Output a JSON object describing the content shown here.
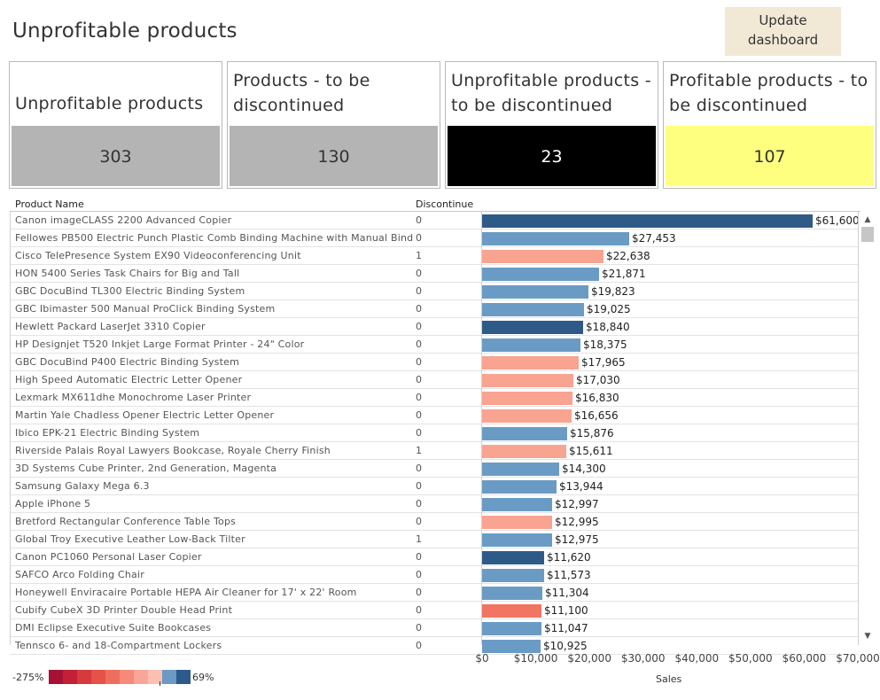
{
  "title": "Unprofitable products",
  "update_button": {
    "line1": "Update",
    "line2": "dashboard"
  },
  "kpis": [
    {
      "line1": "Unprofitable products",
      "line2": "",
      "value": "303",
      "bg": "#b4b4b4",
      "fg": "#333333"
    },
    {
      "line1": "Products - to be",
      "line2": "discontinued",
      "value": "130",
      "bg": "#b4b4b4",
      "fg": "#333333"
    },
    {
      "line1": "Unprofitable products -",
      "line2": "to be discontinued",
      "value": "23",
      "bg": "#000000",
      "fg": "#ffffff"
    },
    {
      "line1": "Profitable products - to",
      "line2": "be discontinued",
      "value": "107",
      "bg": "#ffff7f",
      "fg": "#333333"
    }
  ],
  "table": {
    "col_product": "Product Name",
    "col_discontinue": "Discontinue"
  },
  "legend": {
    "low": "-275%",
    "high": "69%",
    "colors": [
      "#a51234",
      "#c41f37",
      "#d73a3d",
      "#e55248",
      "#ee6e5e",
      "#f5897a",
      "#f9a698",
      "#fbc0b2",
      "#6b9ac4",
      "#2b5a8b"
    ]
  },
  "chart_data": {
    "type": "bar",
    "orientation": "horizontal",
    "xlabel": "Sales",
    "xlim": [
      0,
      70000
    ],
    "x_ticks": [
      "$0",
      "$10,000",
      "$20,000",
      "$30,000",
      "$40,000",
      "$50,000",
      "$60,000",
      "$70,000"
    ],
    "x_tick_values": [
      0,
      10000,
      20000,
      30000,
      40000,
      50000,
      60000,
      70000
    ],
    "rows": [
      {
        "name": "Canon imageCLASS 2200 Advanced Copier",
        "discontinue": "0",
        "value": 61600,
        "label": "$61,600",
        "color": "#2e5a88"
      },
      {
        "name": "Fellowes PB500 Electric Punch Plastic Comb Binding Machine with Manual Bind",
        "discontinue": "0",
        "value": 27453,
        "label": "$27,453",
        "color": "#6a9bc5"
      },
      {
        "name": "Cisco TelePresence System EX90 Videoconferencing Unit",
        "discontinue": "1",
        "value": 22638,
        "label": "$22,638",
        "color": "#f9a391"
      },
      {
        "name": "HON 5400 Series Task Chairs for Big and Tall",
        "discontinue": "0",
        "value": 21871,
        "label": "$21,871",
        "color": "#6a9bc5"
      },
      {
        "name": "GBC DocuBind TL300 Electric Binding System",
        "discontinue": "0",
        "value": 19823,
        "label": "$19,823",
        "color": "#6a9bc5"
      },
      {
        "name": "GBC Ibimaster 500 Manual ProClick Binding System",
        "discontinue": "0",
        "value": 19025,
        "label": "$19,025",
        "color": "#6a9bc5"
      },
      {
        "name": "Hewlett Packard LaserJet 3310 Copier",
        "discontinue": "0",
        "value": 18840,
        "label": "$18,840",
        "color": "#2e5a88"
      },
      {
        "name": "HP Designjet T520 Inkjet Large Format Printer - 24\" Color",
        "discontinue": "0",
        "value": 18375,
        "label": "$18,375",
        "color": "#6a9bc5"
      },
      {
        "name": "GBC DocuBind P400 Electric Binding System",
        "discontinue": "0",
        "value": 17965,
        "label": "$17,965",
        "color": "#f9a391"
      },
      {
        "name": "High Speed Automatic Electric Letter Opener",
        "discontinue": "0",
        "value": 17030,
        "label": "$17,030",
        "color": "#f9a391"
      },
      {
        "name": "Lexmark MX611dhe Monochrome Laser Printer",
        "discontinue": "0",
        "value": 16830,
        "label": "$16,830",
        "color": "#f9a391"
      },
      {
        "name": "Martin Yale Chadless Opener Electric Letter Opener",
        "discontinue": "0",
        "value": 16656,
        "label": "$16,656",
        "color": "#f9a391"
      },
      {
        "name": "Ibico EPK-21 Electric Binding System",
        "discontinue": "0",
        "value": 15876,
        "label": "$15,876",
        "color": "#6a9bc5"
      },
      {
        "name": "Riverside Palais Royal Lawyers Bookcase, Royale Cherry Finish",
        "discontinue": "1",
        "value": 15611,
        "label": "$15,611",
        "color": "#f9a391"
      },
      {
        "name": "3D Systems Cube Printer, 2nd Generation, Magenta",
        "discontinue": "0",
        "value": 14300,
        "label": "$14,300",
        "color": "#6a9bc5"
      },
      {
        "name": "Samsung Galaxy Mega 6.3",
        "discontinue": "0",
        "value": 13944,
        "label": "$13,944",
        "color": "#6a9bc5"
      },
      {
        "name": "Apple iPhone 5",
        "discontinue": "0",
        "value": 12997,
        "label": "$12,997",
        "color": "#6a9bc5"
      },
      {
        "name": "Bretford Rectangular Conference Table Tops",
        "discontinue": "0",
        "value": 12995,
        "label": "$12,995",
        "color": "#f9a391"
      },
      {
        "name": "Global Troy Executive Leather Low-Back Tilter",
        "discontinue": "1",
        "value": 12975,
        "label": "$12,975",
        "color": "#6a9bc5"
      },
      {
        "name": "Canon PC1060 Personal Laser Copier",
        "discontinue": "0",
        "value": 11620,
        "label": "$11,620",
        "color": "#2e5a88"
      },
      {
        "name": "SAFCO Arco Folding Chair",
        "discontinue": "0",
        "value": 11573,
        "label": "$11,573",
        "color": "#6a9bc5"
      },
      {
        "name": "Honeywell Enviracaire Portable HEPA Air Cleaner for 17' x 22' Room",
        "discontinue": "0",
        "value": 11304,
        "label": "$11,304",
        "color": "#6a9bc5"
      },
      {
        "name": "Cubify CubeX 3D Printer Double Head Print",
        "discontinue": "0",
        "value": 11100,
        "label": "$11,100",
        "color": "#f17562"
      },
      {
        "name": "DMI Eclipse Executive Suite Bookcases",
        "discontinue": "0",
        "value": 11047,
        "label": "$11,047",
        "color": "#6a9bc5"
      },
      {
        "name": "Tennsco 6- and 18-Compartment Lockers",
        "discontinue": "0",
        "value": 10925,
        "label": "$10,925",
        "color": "#6a9bc5"
      }
    ]
  }
}
